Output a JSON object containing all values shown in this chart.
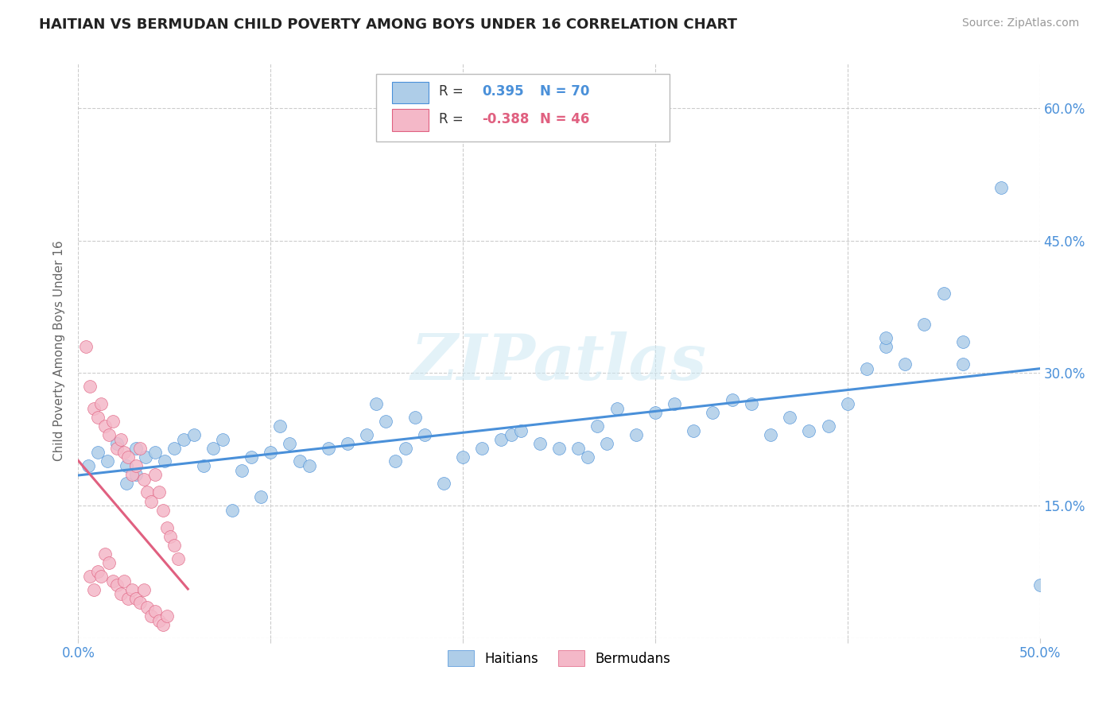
{
  "title": "HAITIAN VS BERMUDAN CHILD POVERTY AMONG BOYS UNDER 16 CORRELATION CHART",
  "source": "Source: ZipAtlas.com",
  "ylabel": "Child Poverty Among Boys Under 16",
  "xlim": [
    0.0,
    0.5
  ],
  "ylim": [
    0.0,
    0.65
  ],
  "xticks": [
    0.0,
    0.1,
    0.2,
    0.3,
    0.4,
    0.5
  ],
  "xticklabels": [
    "0.0%",
    "",
    "",
    "",
    "",
    "50.0%"
  ],
  "yticks": [
    0.0,
    0.15,
    0.3,
    0.45,
    0.6
  ],
  "yticklabels_right": [
    "",
    "15.0%",
    "30.0%",
    "45.0%",
    "60.0%"
  ],
  "background_color": "#ffffff",
  "grid_color": "#cccccc",
  "haiti_color": "#aecde8",
  "bermuda_color": "#f4b8c8",
  "haiti_line_color": "#4a90d9",
  "bermuda_line_color": "#e06080",
  "tick_color": "#4a90d9",
  "haiti_R": 0.395,
  "haiti_N": 70,
  "bermuda_R": -0.388,
  "bermuda_N": 46,
  "watermark": "ZIPatlas",
  "haiti_scatter_x": [
    0.005,
    0.01,
    0.015,
    0.02,
    0.025,
    0.03,
    0.035,
    0.03,
    0.025,
    0.04,
    0.045,
    0.05,
    0.055,
    0.06,
    0.065,
    0.07,
    0.075,
    0.08,
    0.085,
    0.09,
    0.095,
    0.1,
    0.105,
    0.11,
    0.115,
    0.12,
    0.13,
    0.14,
    0.15,
    0.155,
    0.16,
    0.165,
    0.17,
    0.175,
    0.18,
    0.19,
    0.2,
    0.21,
    0.22,
    0.225,
    0.23,
    0.24,
    0.25,
    0.26,
    0.265,
    0.27,
    0.275,
    0.28,
    0.29,
    0.3,
    0.31,
    0.32,
    0.33,
    0.34,
    0.35,
    0.36,
    0.37,
    0.38,
    0.39,
    0.4,
    0.41,
    0.42,
    0.43,
    0.44,
    0.45,
    0.46,
    0.42,
    0.46,
    0.48,
    0.5
  ],
  "haiti_scatter_y": [
    0.195,
    0.21,
    0.2,
    0.22,
    0.195,
    0.215,
    0.205,
    0.185,
    0.175,
    0.21,
    0.2,
    0.215,
    0.225,
    0.23,
    0.195,
    0.215,
    0.225,
    0.145,
    0.19,
    0.205,
    0.16,
    0.21,
    0.24,
    0.22,
    0.2,
    0.195,
    0.215,
    0.22,
    0.23,
    0.265,
    0.245,
    0.2,
    0.215,
    0.25,
    0.23,
    0.175,
    0.205,
    0.215,
    0.225,
    0.23,
    0.235,
    0.22,
    0.215,
    0.215,
    0.205,
    0.24,
    0.22,
    0.26,
    0.23,
    0.255,
    0.265,
    0.235,
    0.255,
    0.27,
    0.265,
    0.23,
    0.25,
    0.235,
    0.24,
    0.265,
    0.305,
    0.33,
    0.31,
    0.355,
    0.39,
    0.31,
    0.34,
    0.335,
    0.51,
    0.06
  ],
  "bermuda_scatter_x": [
    0.004,
    0.006,
    0.008,
    0.01,
    0.012,
    0.014,
    0.016,
    0.018,
    0.02,
    0.022,
    0.024,
    0.026,
    0.028,
    0.03,
    0.032,
    0.034,
    0.036,
    0.038,
    0.04,
    0.042,
    0.044,
    0.046,
    0.048,
    0.05,
    0.052,
    0.006,
    0.008,
    0.01,
    0.012,
    0.014,
    0.016,
    0.018,
    0.02,
    0.022,
    0.024,
    0.026,
    0.028,
    0.03,
    0.032,
    0.034,
    0.036,
    0.038,
    0.04,
    0.042,
    0.044,
    0.046
  ],
  "bermuda_scatter_y": [
    0.33,
    0.285,
    0.26,
    0.25,
    0.265,
    0.24,
    0.23,
    0.245,
    0.215,
    0.225,
    0.21,
    0.205,
    0.185,
    0.195,
    0.215,
    0.18,
    0.165,
    0.155,
    0.185,
    0.165,
    0.145,
    0.125,
    0.115,
    0.105,
    0.09,
    0.07,
    0.055,
    0.075,
    0.07,
    0.095,
    0.085,
    0.065,
    0.06,
    0.05,
    0.065,
    0.045,
    0.055,
    0.045,
    0.04,
    0.055,
    0.035,
    0.025,
    0.03,
    0.02,
    0.015,
    0.025
  ]
}
